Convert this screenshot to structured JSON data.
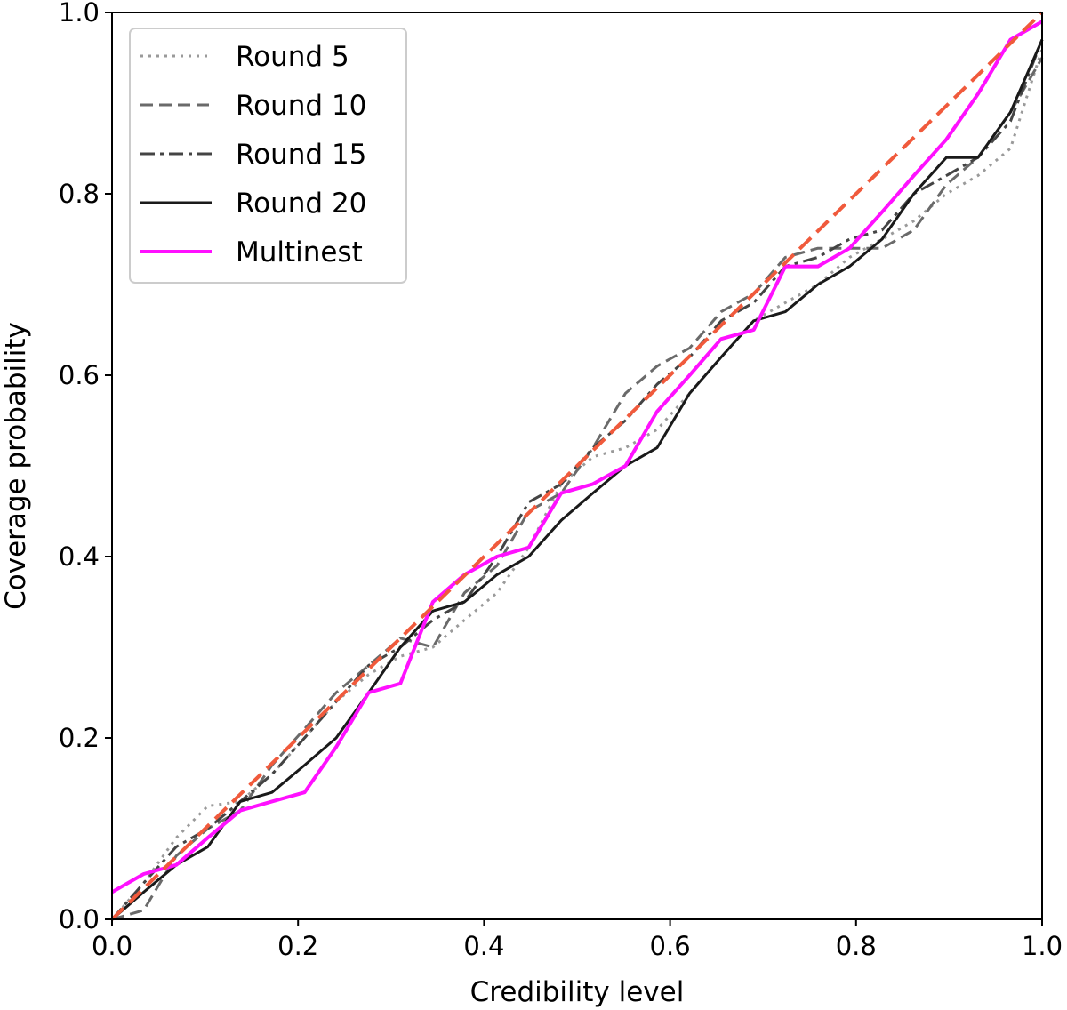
{
  "chart_data": {
    "type": "line",
    "title": "",
    "xlabel": "Credibility level",
    "ylabel": "Coverage probability",
    "xlim": [
      0,
      1
    ],
    "ylim": [
      0,
      1
    ],
    "xticks": [
      "0.0",
      "0.2",
      "0.4",
      "0.6",
      "0.8",
      "1.0"
    ],
    "yticks": [
      "0.0",
      "0.2",
      "0.4",
      "0.6",
      "0.8",
      "1.0"
    ],
    "grid": false,
    "legend_position": "top-left",
    "reference_line": {
      "x": [
        0,
        1
      ],
      "y": [
        0,
        1
      ],
      "color": "#f05a3c",
      "style": "dashed"
    },
    "series": [
      {
        "name": "Round 5",
        "color": "#9a9a9a",
        "style": "dotted",
        "x": [
          0,
          0.034,
          0.069,
          0.103,
          0.138,
          0.172,
          0.207,
          0.241,
          0.276,
          0.31,
          0.345,
          0.379,
          0.414,
          0.448,
          0.483,
          0.517,
          0.552,
          0.586,
          0.621,
          0.655,
          0.69,
          0.724,
          0.759,
          0.793,
          0.828,
          0.862,
          0.897,
          0.931,
          0.966,
          1.0
        ],
        "y": [
          0,
          0.04,
          0.09,
          0.125,
          0.13,
          0.16,
          0.2,
          0.24,
          0.27,
          0.29,
          0.3,
          0.33,
          0.36,
          0.41,
          0.48,
          0.51,
          0.52,
          0.54,
          0.58,
          0.62,
          0.66,
          0.68,
          0.7,
          0.73,
          0.75,
          0.77,
          0.8,
          0.82,
          0.85,
          0.96
        ]
      },
      {
        "name": "Round 10",
        "color": "#6a6a6a",
        "style": "dashed",
        "x": [
          0,
          0.034,
          0.069,
          0.103,
          0.138,
          0.172,
          0.207,
          0.241,
          0.276,
          0.31,
          0.345,
          0.379,
          0.414,
          0.448,
          0.483,
          0.517,
          0.552,
          0.586,
          0.621,
          0.655,
          0.69,
          0.724,
          0.759,
          0.793,
          0.828,
          0.862,
          0.897,
          0.931,
          0.966,
          1.0
        ],
        "y": [
          0,
          0.01,
          0.07,
          0.1,
          0.12,
          0.17,
          0.21,
          0.25,
          0.28,
          0.31,
          0.3,
          0.36,
          0.39,
          0.45,
          0.47,
          0.52,
          0.58,
          0.61,
          0.63,
          0.67,
          0.69,
          0.73,
          0.74,
          0.74,
          0.74,
          0.76,
          0.81,
          0.84,
          0.89,
          0.95
        ]
      },
      {
        "name": "Round 15",
        "color": "#444444",
        "style": "dashdot",
        "x": [
          0,
          0.034,
          0.069,
          0.103,
          0.138,
          0.172,
          0.207,
          0.241,
          0.276,
          0.31,
          0.345,
          0.379,
          0.414,
          0.448,
          0.483,
          0.517,
          0.552,
          0.586,
          0.621,
          0.655,
          0.69,
          0.724,
          0.759,
          0.793,
          0.828,
          0.862,
          0.897,
          0.931,
          0.966,
          1.0
        ],
        "y": [
          0,
          0.04,
          0.08,
          0.1,
          0.13,
          0.16,
          0.2,
          0.24,
          0.28,
          0.3,
          0.33,
          0.35,
          0.4,
          0.46,
          0.48,
          0.52,
          0.55,
          0.59,
          0.62,
          0.66,
          0.68,
          0.72,
          0.73,
          0.75,
          0.76,
          0.8,
          0.82,
          0.84,
          0.88,
          0.97
        ]
      },
      {
        "name": "Round 20",
        "color": "#1a1a1a",
        "style": "solid",
        "x": [
          0,
          0.034,
          0.069,
          0.103,
          0.138,
          0.172,
          0.207,
          0.241,
          0.276,
          0.31,
          0.345,
          0.379,
          0.414,
          0.448,
          0.483,
          0.517,
          0.552,
          0.586,
          0.621,
          0.655,
          0.69,
          0.724,
          0.759,
          0.793,
          0.828,
          0.862,
          0.897,
          0.931,
          0.966,
          1.0
        ],
        "y": [
          0,
          0.03,
          0.06,
          0.08,
          0.13,
          0.14,
          0.17,
          0.2,
          0.25,
          0.3,
          0.34,
          0.35,
          0.38,
          0.4,
          0.44,
          0.47,
          0.5,
          0.52,
          0.58,
          0.62,
          0.66,
          0.67,
          0.7,
          0.72,
          0.75,
          0.8,
          0.84,
          0.84,
          0.89,
          0.97
        ]
      },
      {
        "name": "Multinest",
        "color": "#ff10ff",
        "style": "solid",
        "x": [
          0,
          0.034,
          0.069,
          0.103,
          0.138,
          0.172,
          0.207,
          0.241,
          0.276,
          0.31,
          0.345,
          0.379,
          0.414,
          0.448,
          0.483,
          0.517,
          0.552,
          0.586,
          0.621,
          0.655,
          0.69,
          0.724,
          0.759,
          0.793,
          0.828,
          0.862,
          0.897,
          0.931,
          0.966,
          1.0
        ],
        "y": [
          0.03,
          0.05,
          0.06,
          0.09,
          0.12,
          0.13,
          0.14,
          0.19,
          0.25,
          0.26,
          0.35,
          0.38,
          0.4,
          0.41,
          0.47,
          0.48,
          0.5,
          0.56,
          0.6,
          0.64,
          0.65,
          0.72,
          0.72,
          0.74,
          0.78,
          0.82,
          0.86,
          0.91,
          0.97,
          0.99
        ]
      }
    ]
  }
}
